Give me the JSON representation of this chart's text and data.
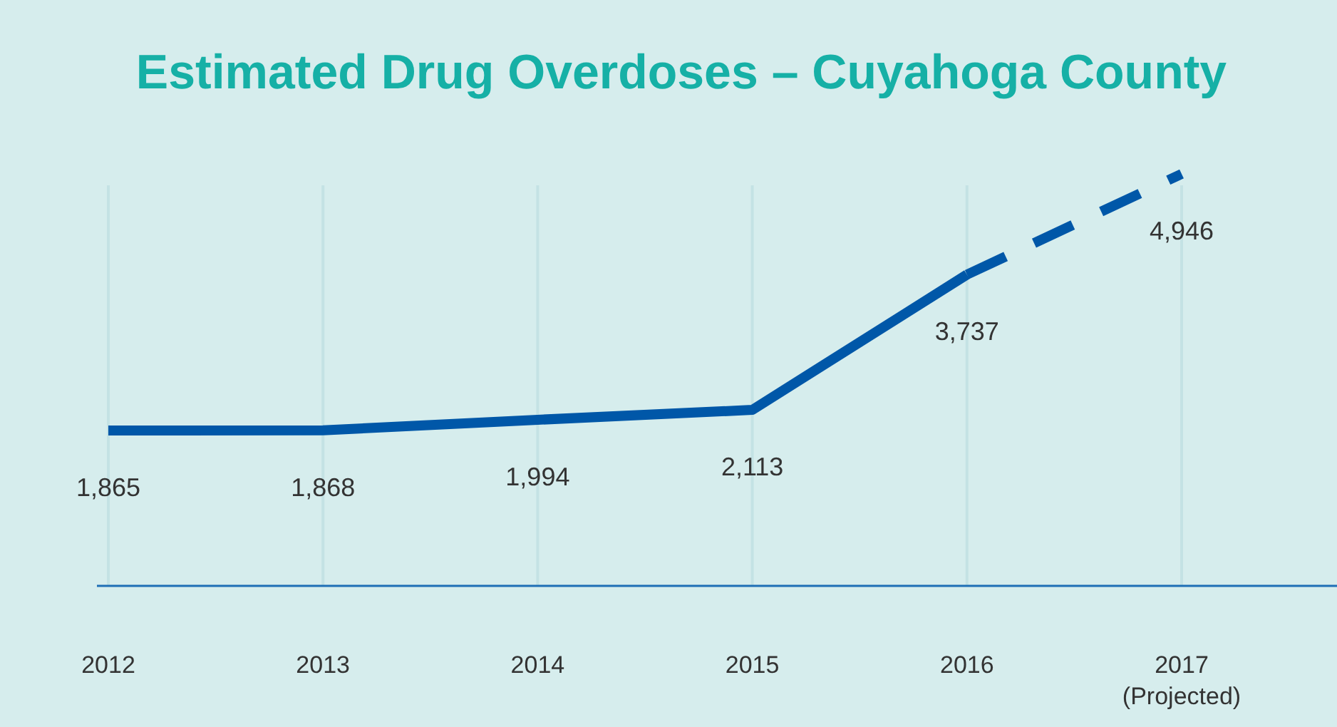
{
  "chart_data": {
    "type": "line",
    "title": "Estimated Drug Overdoses – Cuyahoga County",
    "categories": [
      "2012",
      "2013",
      "2014",
      "2015",
      "2016",
      "2017 (Projected)"
    ],
    "series": [
      {
        "color": "#0057a8",
        "line_style": "solid",
        "values": [
          1865,
          1868,
          1994,
          2113,
          3737,
          null
        ],
        "value_labels": [
          "1,865",
          "1,868",
          "1,994",
          "2,113",
          "3,737",
          null
        ]
      },
      {
        "color": "#0057a8",
        "line_style": "dashed",
        "values": [
          null,
          null,
          null,
          null,
          3737,
          4946
        ],
        "value_labels": [
          null,
          null,
          null,
          null,
          null,
          "4,946"
        ]
      }
    ],
    "grid": "x",
    "marker": "none",
    "tick_labels": "x"
  }
}
